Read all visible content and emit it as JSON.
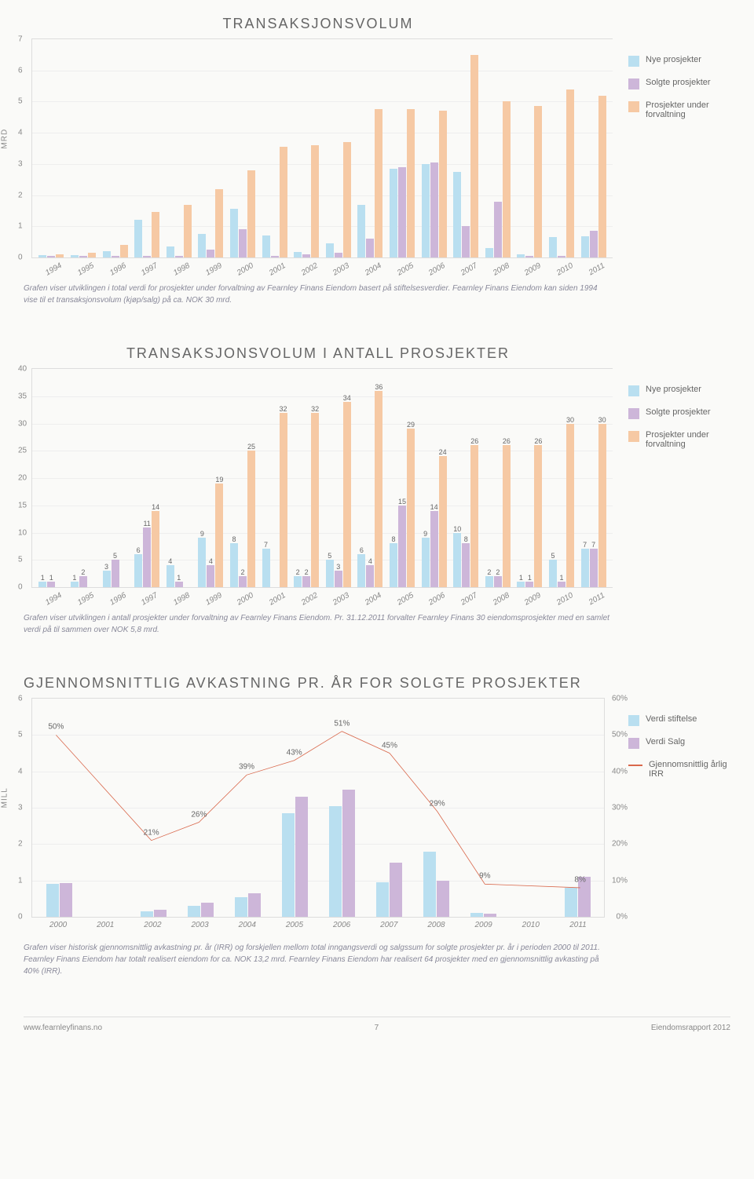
{
  "colors": {
    "nye": "#b9dff0",
    "solgte": "#cdb6d9",
    "forvaltning": "#f6c9a4",
    "line": "#d9684c",
    "grid": "#eeeeee",
    "border": "#dddddd",
    "text": "#666666"
  },
  "legend_common": {
    "nye": "Nye prosjekter",
    "solgte": "Solgte prosjekter",
    "forvaltning": "Prosjekter under forvaltning"
  },
  "chart1": {
    "title": "TRANSAKSJONSVOLUM",
    "type": "bar",
    "y_label": "MRD",
    "ylim": [
      0,
      7
    ],
    "ytick_step": 1,
    "years": [
      "1994",
      "1995",
      "1996",
      "1997",
      "1998",
      "1999",
      "2000",
      "2001",
      "2002",
      "2003",
      "2004",
      "2005",
      "2006",
      "2007",
      "2008",
      "2009",
      "2010",
      "2011"
    ],
    "series": {
      "nye": [
        0.08,
        0.08,
        0.2,
        1.2,
        0.35,
        0.75,
        1.55,
        0.7,
        0.18,
        0.45,
        1.7,
        2.85,
        3.0,
        2.75,
        0.3,
        0.1,
        0.65,
        0.68
      ],
      "solgte": [
        0.05,
        0.05,
        0.05,
        0.05,
        0.05,
        0.25,
        0.9,
        0.05,
        0.1,
        0.15,
        0.6,
        2.9,
        3.05,
        1.0,
        1.8,
        0.05,
        0.05,
        0.85
      ],
      "forvaltning": [
        0.1,
        0.15,
        0.4,
        1.45,
        1.7,
        2.2,
        2.8,
        3.55,
        3.6,
        3.7,
        4.75,
        4.75,
        4.7,
        6.5,
        5.0,
        4.85,
        5.4,
        5.2
      ]
    },
    "caption": "Grafen viser utviklingen i total verdi for prosjekter under forvaltning av Fearnley Finans Eiendom basert på stiftelsesverdier. Fearnley Finans Eiendom kan siden 1994 vise til et transaksjonsvolum (kjøp/salg) på ca. NOK 30 mrd."
  },
  "chart2": {
    "title": "TRANSAKSJONSVOLUM I ANTALL PROSJEKTER",
    "type": "bar",
    "ylim": [
      0,
      40
    ],
    "ytick_step": 5,
    "years": [
      "1994",
      "1995",
      "1996",
      "1997",
      "1998",
      "1999",
      "2000",
      "2001",
      "2002",
      "2003",
      "2004",
      "2005",
      "2006",
      "2007",
      "2008",
      "2009",
      "2010",
      "2011"
    ],
    "series": {
      "nye": [
        1,
        1,
        3,
        6,
        4,
        9,
        8,
        7,
        2,
        5,
        6,
        8,
        9,
        10,
        2,
        1,
        5,
        7
      ],
      "solgte": [
        1,
        2,
        5,
        11,
        1,
        4,
        2,
        0,
        2,
        3,
        4,
        15,
        14,
        8,
        2,
        1,
        1,
        7
      ],
      "forvaltning": [
        0,
        0,
        0,
        14,
        0,
        19,
        25,
        32,
        32,
        34,
        36,
        29,
        24,
        26,
        26,
        26,
        30,
        30
      ]
    },
    "caption": "Grafen viser utviklingen i antall prosjekter under forvaltning av Fearnley Finans Eiendom. Pr. 31.12.2011 forvalter Fearnley Finans 30 eiendomsprosjekter med en samlet verdi på til sammen over NOK 5,8 mrd."
  },
  "chart3": {
    "title": "GJENNOMSNITTLIG AVKASTNING PR. ÅR FOR SOLGTE PROSJEKTER",
    "type": "bar+line",
    "y_label_left": "MILL",
    "ylim_left": [
      0,
      6
    ],
    "ytick_left_step": 1,
    "ylim_right": [
      0,
      60
    ],
    "ytick_right_step": 10,
    "ytick_right_suffix": "%",
    "years": [
      "2000",
      "2001",
      "2002",
      "2003",
      "2004",
      "2005",
      "2006",
      "2007",
      "2008",
      "2009",
      "2010",
      "2011"
    ],
    "series": {
      "stiftelse": [
        0.9,
        0,
        0.15,
        0.3,
        0.55,
        2.85,
        3.05,
        0.95,
        1.8,
        0.1,
        0,
        0.8
      ],
      "salg": [
        0.92,
        0,
        0.2,
        0.38,
        0.65,
        3.3,
        3.5,
        1.5,
        1.0,
        0.08,
        0,
        1.1
      ],
      "irr_pct": [
        50,
        null,
        21,
        26,
        39,
        43,
        51,
        45,
        29,
        9,
        null,
        8
      ]
    },
    "legend": {
      "stiftelse": "Verdi stiftelse",
      "salg": "Verdi Salg",
      "irr": "Gjennomsnittlig årlig IRR"
    },
    "caption": "Grafen viser historisk gjennomsnittlig avkastning pr. år (IRR) og forskjellen mellom total inngangsverdi og salgssum for solgte prosjekter pr. år i perioden 2000 til 2011. Fearnley Finans Eiendom har totalt realisert eiendom for ca. NOK 13,2 mrd. Fearnley Finans Eiendom har realisert 64 prosjekter med en gjennomsnittlig avkasting på 40% (IRR)."
  },
  "footer": {
    "url": "www.fearnleyfinans.no",
    "page": "7",
    "doc": "Eiendomsrapport 2012"
  }
}
